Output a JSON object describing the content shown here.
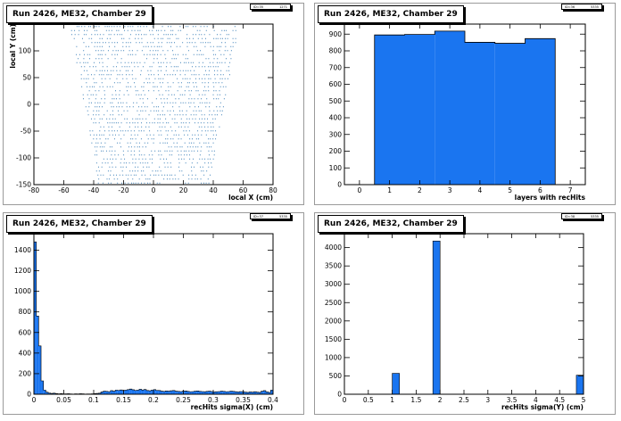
{
  "colors": {
    "fill": "#1a75f0",
    "dots": "#3a7fb8",
    "frame": "#000000"
  },
  "panels": [
    {
      "title": "Run 2426, ME32, Chamber 29",
      "stats": {
        "name": "ID=35",
        "entries": "1271"
      },
      "chart_data": {
        "type": "scatter",
        "xlabel": "local X (cm)",
        "ylabel": "local Y (cm)",
        "xlim": [
          -80,
          80
        ],
        "ylim": [
          -150,
          150
        ],
        "xticks": [
          -80,
          -60,
          -40,
          -20,
          0,
          20,
          40,
          60,
          80
        ],
        "yticks": [
          -150,
          -100,
          -50,
          0,
          50,
          100
        ],
        "region": {
          "bottom_y": -150,
          "top_y": 150,
          "bottom_half_width": 37,
          "top_half_width": 57,
          "rows": 40
        }
      }
    },
    {
      "title": "Run 2426, ME32, Chamber 29",
      "stats": {
        "name": "ID=36",
        "entries": "5335"
      },
      "chart_data": {
        "type": "bar",
        "xlabel": "layers with recHits",
        "ylabel": "",
        "xlim": [
          -0.5,
          7.5
        ],
        "ylim": [
          0,
          960
        ],
        "xticks": [
          0,
          1,
          2,
          3,
          4,
          5,
          6,
          7
        ],
        "yticks": [
          0,
          100,
          200,
          300,
          400,
          500,
          600,
          700,
          800,
          900
        ],
        "bin_edges": [
          0.5,
          1.5,
          2.5,
          3.5,
          4.5,
          5.5,
          6.5
        ],
        "values": [
          895,
          898,
          918,
          851,
          845,
          873
        ]
      }
    },
    {
      "title": "Run 2426, ME32, Chamber 29",
      "stats": {
        "name": "ID=37",
        "entries": "5335"
      },
      "chart_data": {
        "type": "bar",
        "xlabel": "recHits sigma(X) (cm)",
        "ylabel": "",
        "xlim": [
          0,
          0.4
        ],
        "ylim": [
          0,
          1560
        ],
        "xticks": [
          0,
          0.05,
          0.1,
          0.15,
          0.2,
          0.25,
          0.3,
          0.35,
          0.4
        ],
        "xtick_labels": [
          "0",
          "0.05",
          "0.1",
          "0.15",
          "0.2",
          "0.25",
          "0.3",
          "0.35",
          "0.4"
        ],
        "yticks": [
          0,
          200,
          400,
          600,
          800,
          1000,
          1200,
          1400
        ],
        "bin_width": 0.004,
        "values": [
          1480,
          760,
          470,
          130,
          40,
          20,
          12,
          8,
          10,
          6,
          4,
          6,
          3,
          4,
          5,
          3,
          2,
          4,
          3,
          5,
          4,
          2,
          3,
          3,
          4,
          6,
          8,
          10,
          22,
          30,
          28,
          25,
          35,
          30,
          40,
          38,
          42,
          36,
          40,
          45,
          50,
          44,
          38,
          40,
          48,
          42,
          46,
          36,
          34,
          40,
          45,
          38,
          36,
          30,
          28,
          32,
          30,
          34,
          36,
          30,
          28,
          26,
          30,
          32,
          28,
          25,
          26,
          30,
          32,
          28,
          26,
          24,
          28,
          30,
          26,
          22,
          24,
          26,
          30,
          28,
          25,
          26,
          30,
          28,
          24,
          22,
          26,
          24,
          20,
          18,
          22,
          20,
          24,
          20,
          18,
          30,
          35,
          22,
          18,
          40
        ]
      }
    },
    {
      "title": "Run 2426, ME32, Chamber 29",
      "stats": {
        "name": "ID=38",
        "entries": "5335"
      },
      "chart_data": {
        "type": "bar",
        "xlabel": "recHits sigma(Y) (cm)",
        "ylabel": "",
        "xlim": [
          0,
          5
        ],
        "ylim": [
          0,
          4380
        ],
        "xticks": [
          0,
          0.5,
          1,
          1.5,
          2,
          2.5,
          3,
          3.5,
          4,
          4.5,
          5
        ],
        "xtick_labels": [
          "0",
          "0.5",
          "1",
          "1.5",
          "2",
          "2.5",
          "3",
          "3.5",
          "4",
          "4.5",
          "5"
        ],
        "yticks": [
          0,
          500,
          1000,
          1500,
          2000,
          2500,
          3000,
          3500,
          4000
        ],
        "bins": [
          {
            "x0": 1.0,
            "x1": 1.15,
            "value": 570
          },
          {
            "x0": 1.85,
            "x1": 2.0,
            "value": 4180
          },
          {
            "x0": 4.85,
            "x1": 5.0,
            "value": 520
          }
        ]
      }
    }
  ]
}
